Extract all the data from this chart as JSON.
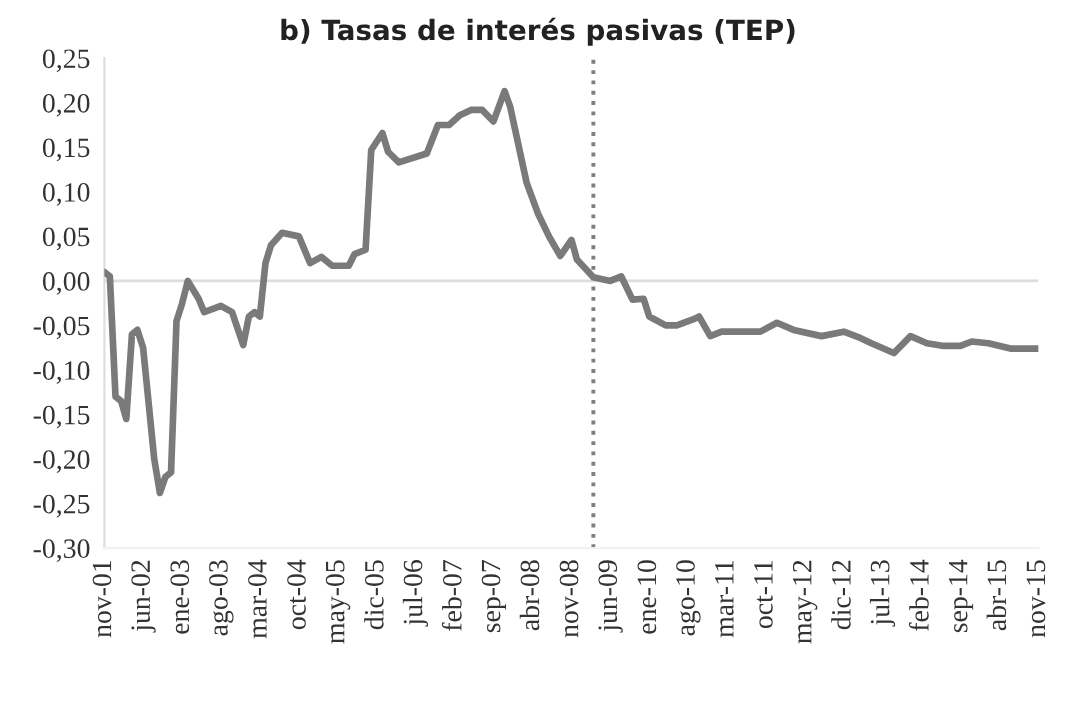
{
  "chart_data": {
    "type": "line",
    "title": "b) Tasas de interés pasivas (TEP)",
    "x": [
      "2001-11",
      "2001-12",
      "2002-01",
      "2002-02",
      "2002-03",
      "2002-04",
      "2002-05",
      "2002-06",
      "2002-08",
      "2002-09",
      "2002-10",
      "2002-11",
      "2002-12",
      "2003-01",
      "2003-02",
      "2003-04",
      "2003-05",
      "2003-08",
      "2003-10",
      "2003-12",
      "2004-01",
      "2004-02",
      "2004-03",
      "2004-04",
      "2004-05",
      "2004-07",
      "2004-10",
      "2004-12",
      "2005-02",
      "2005-04",
      "2005-07",
      "2005-08",
      "2005-10",
      "2005-11",
      "2006-01",
      "2006-02",
      "2006-04",
      "2006-09",
      "2006-11",
      "2007-01",
      "2007-03",
      "2007-05",
      "2007-07",
      "2007-09",
      "2007-11",
      "2007-12",
      "2008-03",
      "2008-05",
      "2008-07",
      "2008-09",
      "2008-11",
      "2008-12",
      "2009-03",
      "2009-06",
      "2009-08",
      "2009-10",
      "2009-12",
      "2010-01",
      "2010-04",
      "2010-06",
      "2010-09",
      "2010-10",
      "2010-12",
      "2011-02",
      "2011-06",
      "2011-09",
      "2011-12",
      "2012-03",
      "2012-08",
      "2012-12",
      "2013-03",
      "2013-05",
      "2013-09",
      "2013-12",
      "2014-03",
      "2014-06",
      "2014-09",
      "2014-11",
      "2015-02",
      "2015-06",
      "2015-11"
    ],
    "series": [
      {
        "color": "#7a7a7a",
        "values": [
          0.01,
          0.005,
          -0.13,
          -0.135,
          -0.155,
          -0.06,
          -0.055,
          -0.075,
          -0.2,
          -0.238,
          -0.22,
          -0.215,
          -0.045,
          -0.025,
          0.0,
          -0.02,
          -0.035,
          -0.028,
          -0.035,
          -0.072,
          -0.04,
          -0.035,
          -0.04,
          0.02,
          0.04,
          0.054,
          0.05,
          0.02,
          0.027,
          0.017,
          0.017,
          0.03,
          0.035,
          0.147,
          0.166,
          0.145,
          0.133,
          0.143,
          0.175,
          0.175,
          0.186,
          0.192,
          0.192,
          0.179,
          0.213,
          0.196,
          0.11,
          0.076,
          0.05,
          0.028,
          0.046,
          0.024,
          0.004,
          0.0,
          0.005,
          -0.021,
          -0.02,
          -0.04,
          -0.05,
          -0.05,
          -0.043,
          -0.04,
          -0.062,
          -0.057,
          -0.057,
          -0.057,
          -0.047,
          -0.055,
          -0.062,
          -0.057,
          -0.064,
          -0.07,
          -0.081,
          -0.062,
          -0.07,
          -0.073,
          -0.073,
          -0.068,
          -0.07,
          -0.076,
          -0.076
        ]
      }
    ],
    "xlim": [
      "2001-11",
      "2015-11"
    ],
    "xticks": [
      {
        "value": "2001-11",
        "label": "nov-01"
      },
      {
        "value": "2002-06",
        "label": "jun-02"
      },
      {
        "value": "2003-01",
        "label": "ene-03"
      },
      {
        "value": "2003-08",
        "label": "ago-03"
      },
      {
        "value": "2004-03",
        "label": "mar-04"
      },
      {
        "value": "2004-10",
        "label": "oct-04"
      },
      {
        "value": "2005-05",
        "label": "may-05"
      },
      {
        "value": "2005-12",
        "label": "dic-05"
      },
      {
        "value": "2006-07",
        "label": "jul-06"
      },
      {
        "value": "2007-02",
        "label": "feb-07"
      },
      {
        "value": "2007-09",
        "label": "sep-07"
      },
      {
        "value": "2008-04",
        "label": "abr-08"
      },
      {
        "value": "2008-11",
        "label": "nov-08"
      },
      {
        "value": "2009-06",
        "label": "jun-09"
      },
      {
        "value": "2010-01",
        "label": "ene-10"
      },
      {
        "value": "2010-08",
        "label": "ago-10"
      },
      {
        "value": "2011-03",
        "label": "mar-11"
      },
      {
        "value": "2011-10",
        "label": "oct-11"
      },
      {
        "value": "2012-05",
        "label": "may-12"
      },
      {
        "value": "2012-12",
        "label": "dic-12"
      },
      {
        "value": "2013-07",
        "label": "jul-13"
      },
      {
        "value": "2014-02",
        "label": "feb-14"
      },
      {
        "value": "2014-09",
        "label": "sep-14"
      },
      {
        "value": "2015-04",
        "label": "abr-15"
      },
      {
        "value": "2015-11",
        "label": "nov-15"
      }
    ],
    "ylim": [
      -0.3,
      0.25
    ],
    "yticks": [
      {
        "value": 0.25,
        "label": "0,25"
      },
      {
        "value": 0.2,
        "label": "0,20"
      },
      {
        "value": 0.15,
        "label": "0,15"
      },
      {
        "value": 0.1,
        "label": "0,10"
      },
      {
        "value": 0.05,
        "label": "0,05"
      },
      {
        "value": 0.0,
        "label": "0,00"
      },
      {
        "value": -0.05,
        "label": "-0,05"
      },
      {
        "value": -0.1,
        "label": "-0,10"
      },
      {
        "value": -0.15,
        "label": "-0,15"
      },
      {
        "value": -0.2,
        "label": "-0,20"
      },
      {
        "value": -0.25,
        "label": "-0,25"
      },
      {
        "value": -0.3,
        "label": "-0,30"
      }
    ],
    "ref_lines": [
      {
        "axis": "y",
        "value": 0,
        "color": "#dddddd",
        "line_style": "solid"
      },
      {
        "axis": "x",
        "value": "2009-03",
        "color": "#7f7f7f",
        "line_style": "dotted"
      }
    ],
    "grid": false,
    "legend": false,
    "marker": "none",
    "line_style": "solid"
  }
}
